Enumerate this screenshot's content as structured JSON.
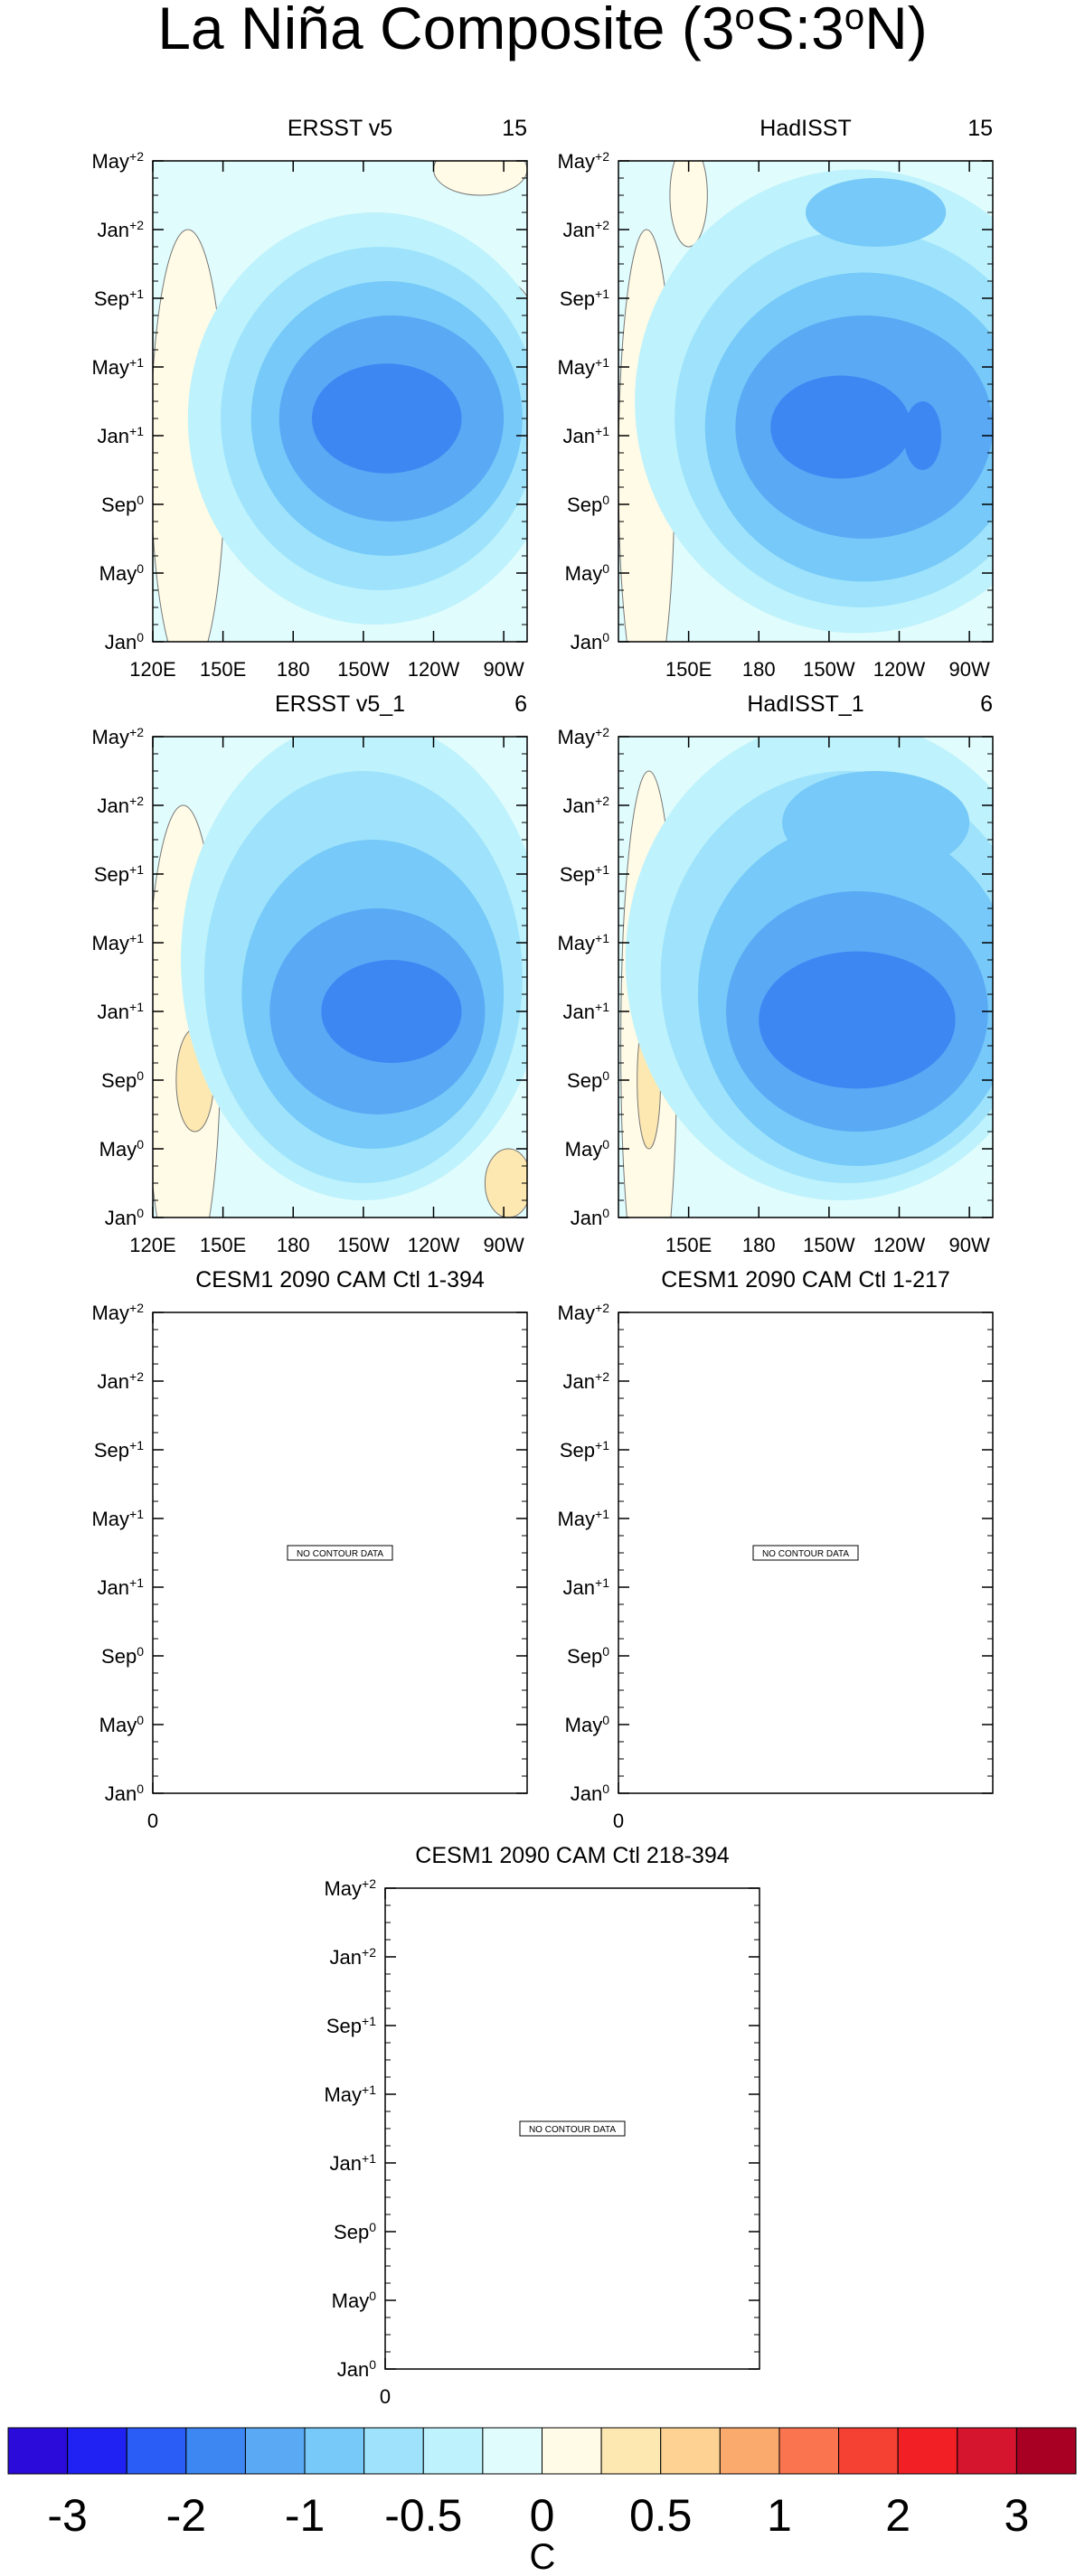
{
  "chart_data": {
    "type": "contour",
    "title_parts": [
      {
        "text": "La Niña Composite (3"
      },
      {
        "sup": "o"
      },
      {
        "text": "S:3"
      },
      {
        "sup": "o"
      },
      {
        "text": "N)"
      }
    ],
    "ylim": [
      0,
      28
    ],
    "yticks": [
      {
        "value": 0,
        "label": {
          "base": "Jan",
          "sup": "0"
        }
      },
      {
        "value": 4,
        "label": {
          "base": "May",
          "sup": "0"
        }
      },
      {
        "value": 8,
        "label": {
          "base": "Sep",
          "sup": "0"
        }
      },
      {
        "value": 12,
        "label": {
          "base": "Jan",
          "sup": "+1"
        }
      },
      {
        "value": 16,
        "label": {
          "base": "May",
          "sup": "+1"
        }
      },
      {
        "value": 20,
        "label": {
          "base": "Sep",
          "sup": "+1"
        }
      },
      {
        "value": 24,
        "label": {
          "base": "Jan",
          "sup": "+2"
        }
      },
      {
        "value": 28,
        "label": {
          "base": "May",
          "sup": "+2"
        }
      }
    ],
    "panels": [
      {
        "title": "ERSST v5",
        "count": 15,
        "xlim": [
          120,
          280
        ],
        "xticks": [
          {
            "value": 120,
            "label": "120E"
          },
          {
            "value": 150,
            "label": "150E"
          },
          180,
          {
            "value": 210,
            "label": "150W"
          },
          {
            "value": 240,
            "label": "120W"
          },
          {
            "value": 270,
            "label": "90W"
          }
        ]
      },
      {
        "title": "HadISST",
        "count": 15,
        "xlim": [
          120,
          280
        ],
        "xticks": [
          {
            "value": 150,
            "label": "150E"
          },
          180,
          {
            "value": 210,
            "label": "150W"
          },
          {
            "value": 240,
            "label": "120W"
          },
          {
            "value": 270,
            "label": "90W"
          }
        ]
      },
      {
        "title": "ERSST v5_1",
        "count": 6,
        "xlim": [
          120,
          280
        ],
        "xticks": [
          {
            "value": 120,
            "label": "120E"
          },
          {
            "value": 150,
            "label": "150E"
          },
          180,
          {
            "value": 210,
            "label": "150W"
          },
          {
            "value": 240,
            "label": "120W"
          },
          {
            "value": 270,
            "label": "90W"
          }
        ]
      },
      {
        "title": "HadISST_1",
        "count": 6,
        "xlim": [
          120,
          280
        ],
        "xticks": [
          {
            "value": 150,
            "label": "150E"
          },
          180,
          {
            "value": 210,
            "label": "150W"
          },
          {
            "value": 240,
            "label": "120W"
          },
          {
            "value": 270,
            "label": "90W"
          }
        ]
      },
      {
        "title": "CESM1 2090 CAM Ctl 1-394",
        "no_data": "NO CONTOUR DATA",
        "xlim": [
          0,
          1
        ],
        "xticks": [
          0
        ]
      },
      {
        "title": "CESM1 2090 CAM Ctl 1-217",
        "no_data": "NO CONTOUR DATA",
        "xlim": [
          0,
          1
        ],
        "xticks": [
          0
        ]
      },
      {
        "title": "CESM1 2090 CAM Ctl 218-394",
        "no_data": "NO CONTOUR DATA",
        "xlim": [
          0,
          1
        ],
        "xticks": [
          0
        ]
      }
    ],
    "colorbar": {
      "colors": [
        "#2a0bd9",
        "#1f22f2",
        "#2a5df5",
        "#3d87f3",
        "#5aa9f5",
        "#76c9f8",
        "#9ee3fb",
        "#bef2fc",
        "#e0fcfd",
        "#fffbe6",
        "#fde8b1",
        "#fdd292",
        "#fbaa6e",
        "#f9744f",
        "#f54034",
        "#f22025",
        "#d5152e",
        "#a70022"
      ],
      "ticks": [
        -3,
        -2,
        -1,
        -0.5,
        0,
        0.5,
        1,
        2,
        3
      ],
      "label": "C"
    }
  }
}
